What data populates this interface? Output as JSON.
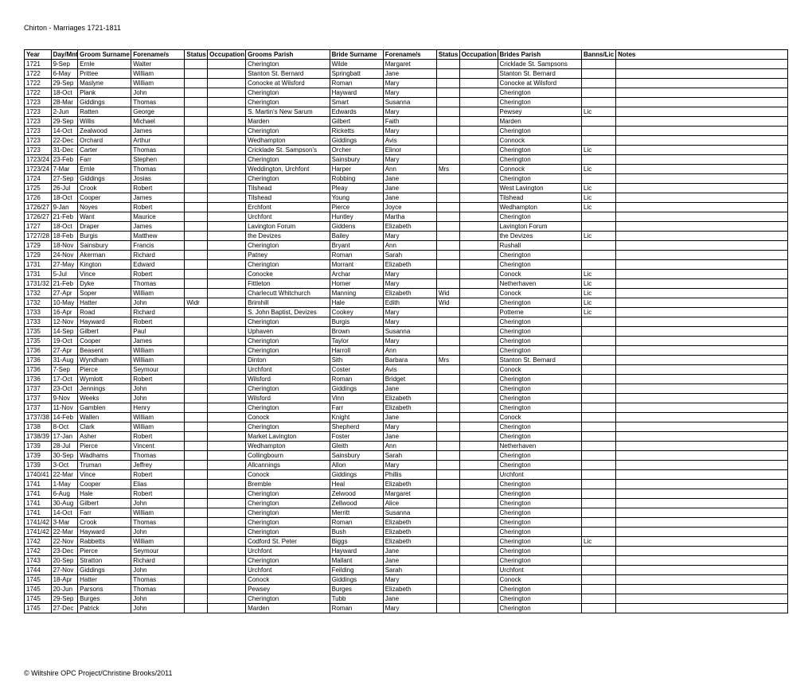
{
  "title": "Chirton - Marriages 1721-1811",
  "footer": "© Wiltshire OPC Project/Christine Brooks/2011",
  "columns": [
    "Year",
    "Day/Mnth",
    "Groom Surname",
    "Forename/s",
    "Status",
    "Occupation",
    "Grooms Parish",
    "Bride Surname",
    "Forename/s",
    "Status",
    "Occupation",
    "Brides Parish",
    "Banns/Lic",
    "Notes"
  ],
  "rows": [
    [
      "1721",
      "9-Sep",
      "Ernle",
      "Walter",
      "",
      "",
      "Cherington",
      "Wilde",
      "Margaret",
      "",
      "",
      "Cricklade St. Sampsons",
      "",
      ""
    ],
    [
      "1722",
      "6-May",
      "Prittee",
      "William",
      "",
      "",
      "Stanton St. Bernard",
      "Springbatt",
      "Jane",
      "",
      "",
      "Stanton St. Bernard",
      "",
      ""
    ],
    [
      "1722",
      "29-Sep",
      "Maslyne",
      "William",
      "",
      "",
      "Conocke at Wilsford",
      "Roman",
      "Mary",
      "",
      "",
      "Conocke at Wilsford",
      "",
      ""
    ],
    [
      "1722",
      "18-Oct",
      "Plank",
      "John",
      "",
      "",
      "Cherington",
      "Hayward",
      "Mary",
      "",
      "",
      "Cherington",
      "",
      ""
    ],
    [
      "1723",
      "28-Mar",
      "Giddings",
      "Thomas",
      "",
      "",
      "Cherington",
      "Smart",
      "Susanna",
      "",
      "",
      "Cherington",
      "",
      ""
    ],
    [
      "1723",
      "2-Jun",
      "Ratten",
      "George",
      "",
      "",
      "S. Martin's New Sarum",
      "Edwards",
      "Mary",
      "",
      "",
      "Pewsey",
      "Lic",
      ""
    ],
    [
      "1723",
      "29-Sep",
      "Willis",
      "Michael",
      "",
      "",
      "Marden",
      "Gilbert",
      "Faith",
      "",
      "",
      "Marden",
      "",
      ""
    ],
    [
      "1723",
      "14-Oct",
      "Zealwood",
      "James",
      "",
      "",
      "Cherington",
      "Ricketts",
      "Mary",
      "",
      "",
      "Cherington",
      "",
      ""
    ],
    [
      "1723",
      "22-Dec",
      "Orchard",
      "Arthur",
      "",
      "",
      "Wedhampton",
      "Giddings",
      "Avis",
      "",
      "",
      "Connock",
      "",
      ""
    ],
    [
      "1723",
      "31-Dec",
      "Carter",
      "Thomas",
      "",
      "",
      "Cricklade St. Sampson's",
      "Orcher",
      "Elinor",
      "",
      "",
      "Cherington",
      "Lic",
      ""
    ],
    [
      "1723/24",
      "23-Feb",
      "Farr",
      "Stephen",
      "",
      "",
      "Cherington",
      "Sainsbury",
      "Mary",
      "",
      "",
      "Cherington",
      "",
      ""
    ],
    [
      "1723/24",
      "7-Mar",
      "Ernle",
      "Thomas",
      "",
      "",
      "Weddington,  Urchfont",
      "Harper",
      "Ann",
      "Mrs",
      "",
      "Connock",
      "Lic",
      ""
    ],
    [
      "1724",
      "27-Sep",
      "Giddings",
      "Josias",
      "",
      "",
      "Cherington",
      "Robbing",
      "Jane",
      "",
      "",
      "Cherington",
      "",
      ""
    ],
    [
      "1725",
      "26-Jul",
      "Crook",
      "Robert",
      "",
      "",
      "Tilshead",
      "Pleay",
      "Jane",
      "",
      "",
      "West Lavington",
      "Lic",
      ""
    ],
    [
      "1726",
      "18-Oct",
      "Cooper",
      "James",
      "",
      "",
      "Tilshead",
      "Young",
      "Jane",
      "",
      "",
      "Tilshead",
      "Lic",
      ""
    ],
    [
      "1726/27",
      "9-Jan",
      "Noyes",
      "Robert",
      "",
      "",
      "Erchfont",
      "Pierce",
      "Joyce",
      "",
      "",
      "Wedhampton",
      "Lic",
      ""
    ],
    [
      "1726/27",
      "21-Feb",
      "Want",
      "Maurice",
      "",
      "",
      "Urchfont",
      "Huntley",
      "Martha",
      "",
      "",
      "Cherington",
      "",
      ""
    ],
    [
      "1727",
      "18-Oct",
      "Draper",
      "James",
      "",
      "",
      "Lavington Forum",
      "Giddens",
      "Elizabeth",
      "",
      "",
      "Lavington Forum",
      "",
      ""
    ],
    [
      "1727/28",
      "18-Feb",
      "Burgis",
      "Matthew",
      "",
      "",
      "the Devizes",
      "Bailey",
      "Mary",
      "",
      "",
      "the Devizes",
      "Lic",
      ""
    ],
    [
      "1729",
      "18-Nov",
      "Sainsbury",
      "Francis",
      "",
      "",
      "Cherington",
      "Bryant",
      "Ann",
      "",
      "",
      "Rushall",
      "",
      ""
    ],
    [
      "1729",
      "24-Nov",
      "Akerman",
      "Richard",
      "",
      "",
      "Patney",
      "Roman",
      "Sarah",
      "",
      "",
      "Cherington",
      "",
      ""
    ],
    [
      "1731",
      "27-May",
      "Kington",
      "Edward",
      "",
      "",
      "Cherington",
      "Morrant",
      "Elizabeth",
      "",
      "",
      "Cherington",
      "",
      ""
    ],
    [
      "1731",
      "5-Jul",
      "Vince",
      "Robert",
      "",
      "",
      "Conocke",
      "Archar",
      "Mary",
      "",
      "",
      "Conock",
      "Lic",
      ""
    ],
    [
      "1731/32",
      "21-Feb",
      "Dyke",
      "Thomas",
      "",
      "",
      "Fittleton",
      "Homer",
      "Mary",
      "",
      "",
      "Netherhaven",
      "Lic",
      ""
    ],
    [
      "1732",
      "27-Apr",
      "Soper",
      "William",
      "",
      "",
      "Charlecutt  Whitchurch",
      "Manning",
      "Elizabeth",
      "Wid",
      "",
      "Conock",
      "Lic",
      ""
    ],
    [
      "1732",
      "10-May",
      "Hatter",
      "John",
      "Widr",
      "",
      "Brimhill",
      "Hale",
      "Edith",
      "Wid",
      "",
      "Cherington",
      "Lic",
      ""
    ],
    [
      "1733",
      "16-Apr",
      "Road",
      "Richard",
      "",
      "",
      "S. John Baptist, Devizes",
      "Cookey",
      "Mary",
      "",
      "",
      "Potterne",
      "Lic",
      ""
    ],
    [
      "1733",
      "12-Nov",
      "Hayward",
      "Robert",
      "",
      "",
      "Cherington",
      "Burgis",
      "Mary",
      "",
      "",
      "Cherington",
      "",
      ""
    ],
    [
      "1735",
      "14-Sep",
      "Gilbert",
      "Paul",
      "",
      "",
      "Uphaven",
      "Brown",
      "Susanna",
      "",
      "",
      "Cherington",
      "",
      ""
    ],
    [
      "1735",
      "19-Oct",
      "Cooper",
      "James",
      "",
      "",
      "Cherington",
      "Taylor",
      "Mary",
      "",
      "",
      "Cherington",
      "",
      ""
    ],
    [
      "1736",
      "27-Apr",
      "Beasent",
      "William",
      "",
      "",
      "Cherington",
      "Harroll",
      "Ann",
      "",
      "",
      "Cherington",
      "",
      ""
    ],
    [
      "1736",
      "31-Aug",
      "Wyndham",
      "William",
      "",
      "",
      "Dinton",
      "Sith",
      "Barbara",
      "Mrs",
      "",
      "Stanton St. Bernard",
      "",
      ""
    ],
    [
      "1736",
      "7-Sep",
      "Pierce",
      "Seymour",
      "",
      "",
      "Urchfont",
      "Coster",
      "Avis",
      "",
      "",
      "Conock",
      "",
      ""
    ],
    [
      "1736",
      "17-Oct",
      "Wymlott",
      "Robert",
      "",
      "",
      "Wilsford",
      "Roman",
      "Bridget",
      "",
      "",
      "Cherington",
      "",
      ""
    ],
    [
      "1737",
      "23-Oct",
      "Jennings",
      "John",
      "",
      "",
      "Cherington",
      "Giddings",
      "Jane",
      "",
      "",
      "Cherington",
      "",
      ""
    ],
    [
      "1737",
      "9-Nov",
      "Weeks",
      "John",
      "",
      "",
      "Wilsford",
      "Vinn",
      "Elizabeth",
      "",
      "",
      "Cherington",
      "",
      ""
    ],
    [
      "1737",
      "11-Nov",
      "Gamblen",
      "Henry",
      "",
      "",
      "Cherington",
      "Farr",
      "Elizabeth",
      "",
      "",
      "Cherington",
      "",
      ""
    ],
    [
      "1737/38",
      "14-Feb",
      "Wallen",
      "William",
      "",
      "",
      "Conock",
      "Knight",
      "Jane",
      "",
      "",
      "Conock",
      "",
      ""
    ],
    [
      "1738",
      "8-Oct",
      "Clark",
      "William",
      "",
      "",
      "Cherington",
      "Shepherd",
      "Mary",
      "",
      "",
      "Cherington",
      "",
      ""
    ],
    [
      "1738/39",
      "17-Jan",
      "Asher",
      "Robert",
      "",
      "",
      "Market Lavington",
      "Foster",
      "Jane",
      "",
      "",
      "Cherington",
      "",
      ""
    ],
    [
      "1739",
      "28-Jul",
      "Pierce",
      "Vincent",
      "",
      "",
      "Wedhampton",
      "Gleith",
      "Ann",
      "",
      "",
      "Netherhaven",
      "",
      ""
    ],
    [
      "1739",
      "30-Sep",
      "Wadhams",
      "Thomas",
      "",
      "",
      "Collingbourn",
      "Sainsbury",
      "Sarah",
      "",
      "",
      "Cherington",
      "",
      ""
    ],
    [
      "1739",
      "3-Oct",
      "Truman",
      "Jeffrey",
      "",
      "",
      "Allcannings",
      "Allon",
      "Mary",
      "",
      "",
      "Cherington",
      "",
      ""
    ],
    [
      "1740/41",
      "22-Mar",
      "Vince",
      "Robert",
      "",
      "",
      "Conock",
      "Giddings",
      "Phillis",
      "",
      "",
      "Urchfont",
      "",
      ""
    ],
    [
      "1741",
      "1-May",
      "Cooper",
      "Elias",
      "",
      "",
      "Bremble",
      "Heal",
      "Elizabeth",
      "",
      "",
      "Cherington",
      "",
      ""
    ],
    [
      "1741",
      "6-Aug",
      "Hale",
      "Robert",
      "",
      "",
      "Cherington",
      "Zelwood",
      "Margaret",
      "",
      "",
      "Cherington",
      "",
      ""
    ],
    [
      "1741",
      "30-Aug",
      "Gilbert",
      "John",
      "",
      "",
      "Cherington",
      "Zellwood",
      "Alice",
      "",
      "",
      "Cherington",
      "",
      ""
    ],
    [
      "1741",
      "14-Oct",
      "Farr",
      "William",
      "",
      "",
      "Cherington",
      "Merritt",
      "Susanna",
      "",
      "",
      "Cherington",
      "",
      ""
    ],
    [
      "1741/42",
      "3-Mar",
      "Crook",
      "Thomas",
      "",
      "",
      "Cherington",
      "Roman",
      "Elizabeth",
      "",
      "",
      "Cherington",
      "",
      ""
    ],
    [
      "1741/42",
      "22-Mar",
      "Hayward",
      "John",
      "",
      "",
      "Cherington",
      "Bush",
      "Elizabeth",
      "",
      "",
      "Cherington",
      "",
      ""
    ],
    [
      "1742",
      "22-Nov",
      "Rabbetts",
      "William",
      "",
      "",
      "Codford St. Peter",
      "Biggs",
      "Elizabeth",
      "",
      "",
      "Cherington",
      "Lic",
      ""
    ],
    [
      "1742",
      "23-Dec",
      "Pierce",
      "Seymour",
      "",
      "",
      "Urchfont",
      "Hayward",
      "Jane",
      "",
      "",
      "Cherington",
      "",
      ""
    ],
    [
      "1743",
      "20-Sep",
      "Stratton",
      "Richard",
      "",
      "",
      "Cherington",
      "Mallant",
      "Jane",
      "",
      "",
      "Cherington",
      "",
      ""
    ],
    [
      "1744",
      "27-Nov",
      "Giddings",
      "John",
      "",
      "",
      "Urchfont",
      "Feilding",
      "Sarah",
      "",
      "",
      "Urchfont",
      "",
      ""
    ],
    [
      "1745",
      "18-Apr",
      "Hatter",
      "Thomas",
      "",
      "",
      "Conock",
      "Giddings",
      "Mary",
      "",
      "",
      "Conock",
      "",
      ""
    ],
    [
      "1745",
      "20-Jun",
      "Parsons",
      "Thomas",
      "",
      "",
      "Pewsey",
      "Burges",
      "Elizabeth",
      "",
      "",
      "Cherington",
      "",
      ""
    ],
    [
      "1745",
      "29-Sep",
      "Burges",
      "John",
      "",
      "",
      "Cherington",
      "Tubb",
      "Jane",
      "",
      "",
      "Cherington",
      "",
      ""
    ],
    [
      "1745",
      "27-Dec",
      "Patrick",
      "John",
      "",
      "",
      "Marden",
      "Roman",
      "Mary",
      "",
      "",
      "Cherington",
      "",
      ""
    ]
  ]
}
